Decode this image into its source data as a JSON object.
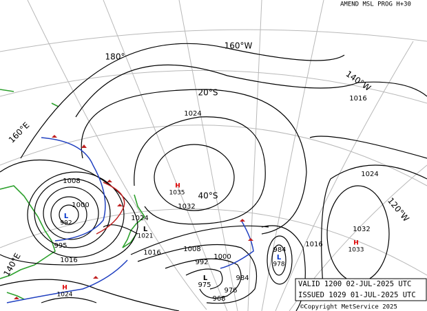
{
  "header": {
    "title": "AMEND MSL PROG H+30"
  },
  "grid_labels": [
    "180°",
    "160°W",
    "140°W",
    "20°S",
    "40°S",
    "160°E",
    "120°W",
    "140°E"
  ],
  "isobar_labels": [
    "1016",
    "1024",
    "1024",
    "1032",
    "1032",
    "1008",
    "1000",
    "1024",
    "1016",
    "1016",
    "1008",
    "992",
    "1000",
    "984",
    "1016",
    "984",
    "976",
    "968",
    "975",
    "995"
  ],
  "centers": [
    {
      "kind": "H",
      "pressure": "1035"
    },
    {
      "kind": "L",
      "pressure": "992"
    },
    {
      "kind": "L",
      "pressure": "1021"
    },
    {
      "kind": "L",
      "pressure": "978"
    },
    {
      "kind": "H",
      "pressure": "1033"
    },
    {
      "kind": "H",
      "pressure": "1024"
    },
    {
      "kind": "L",
      "pressure": "975"
    }
  ],
  "footer": {
    "valid": "VALID  1200  02-JUL-2025  UTC",
    "issued": "ISSUED 1029  01-JUL-2025  UTC",
    "copyright": "©Copyright MetService 2025"
  }
}
